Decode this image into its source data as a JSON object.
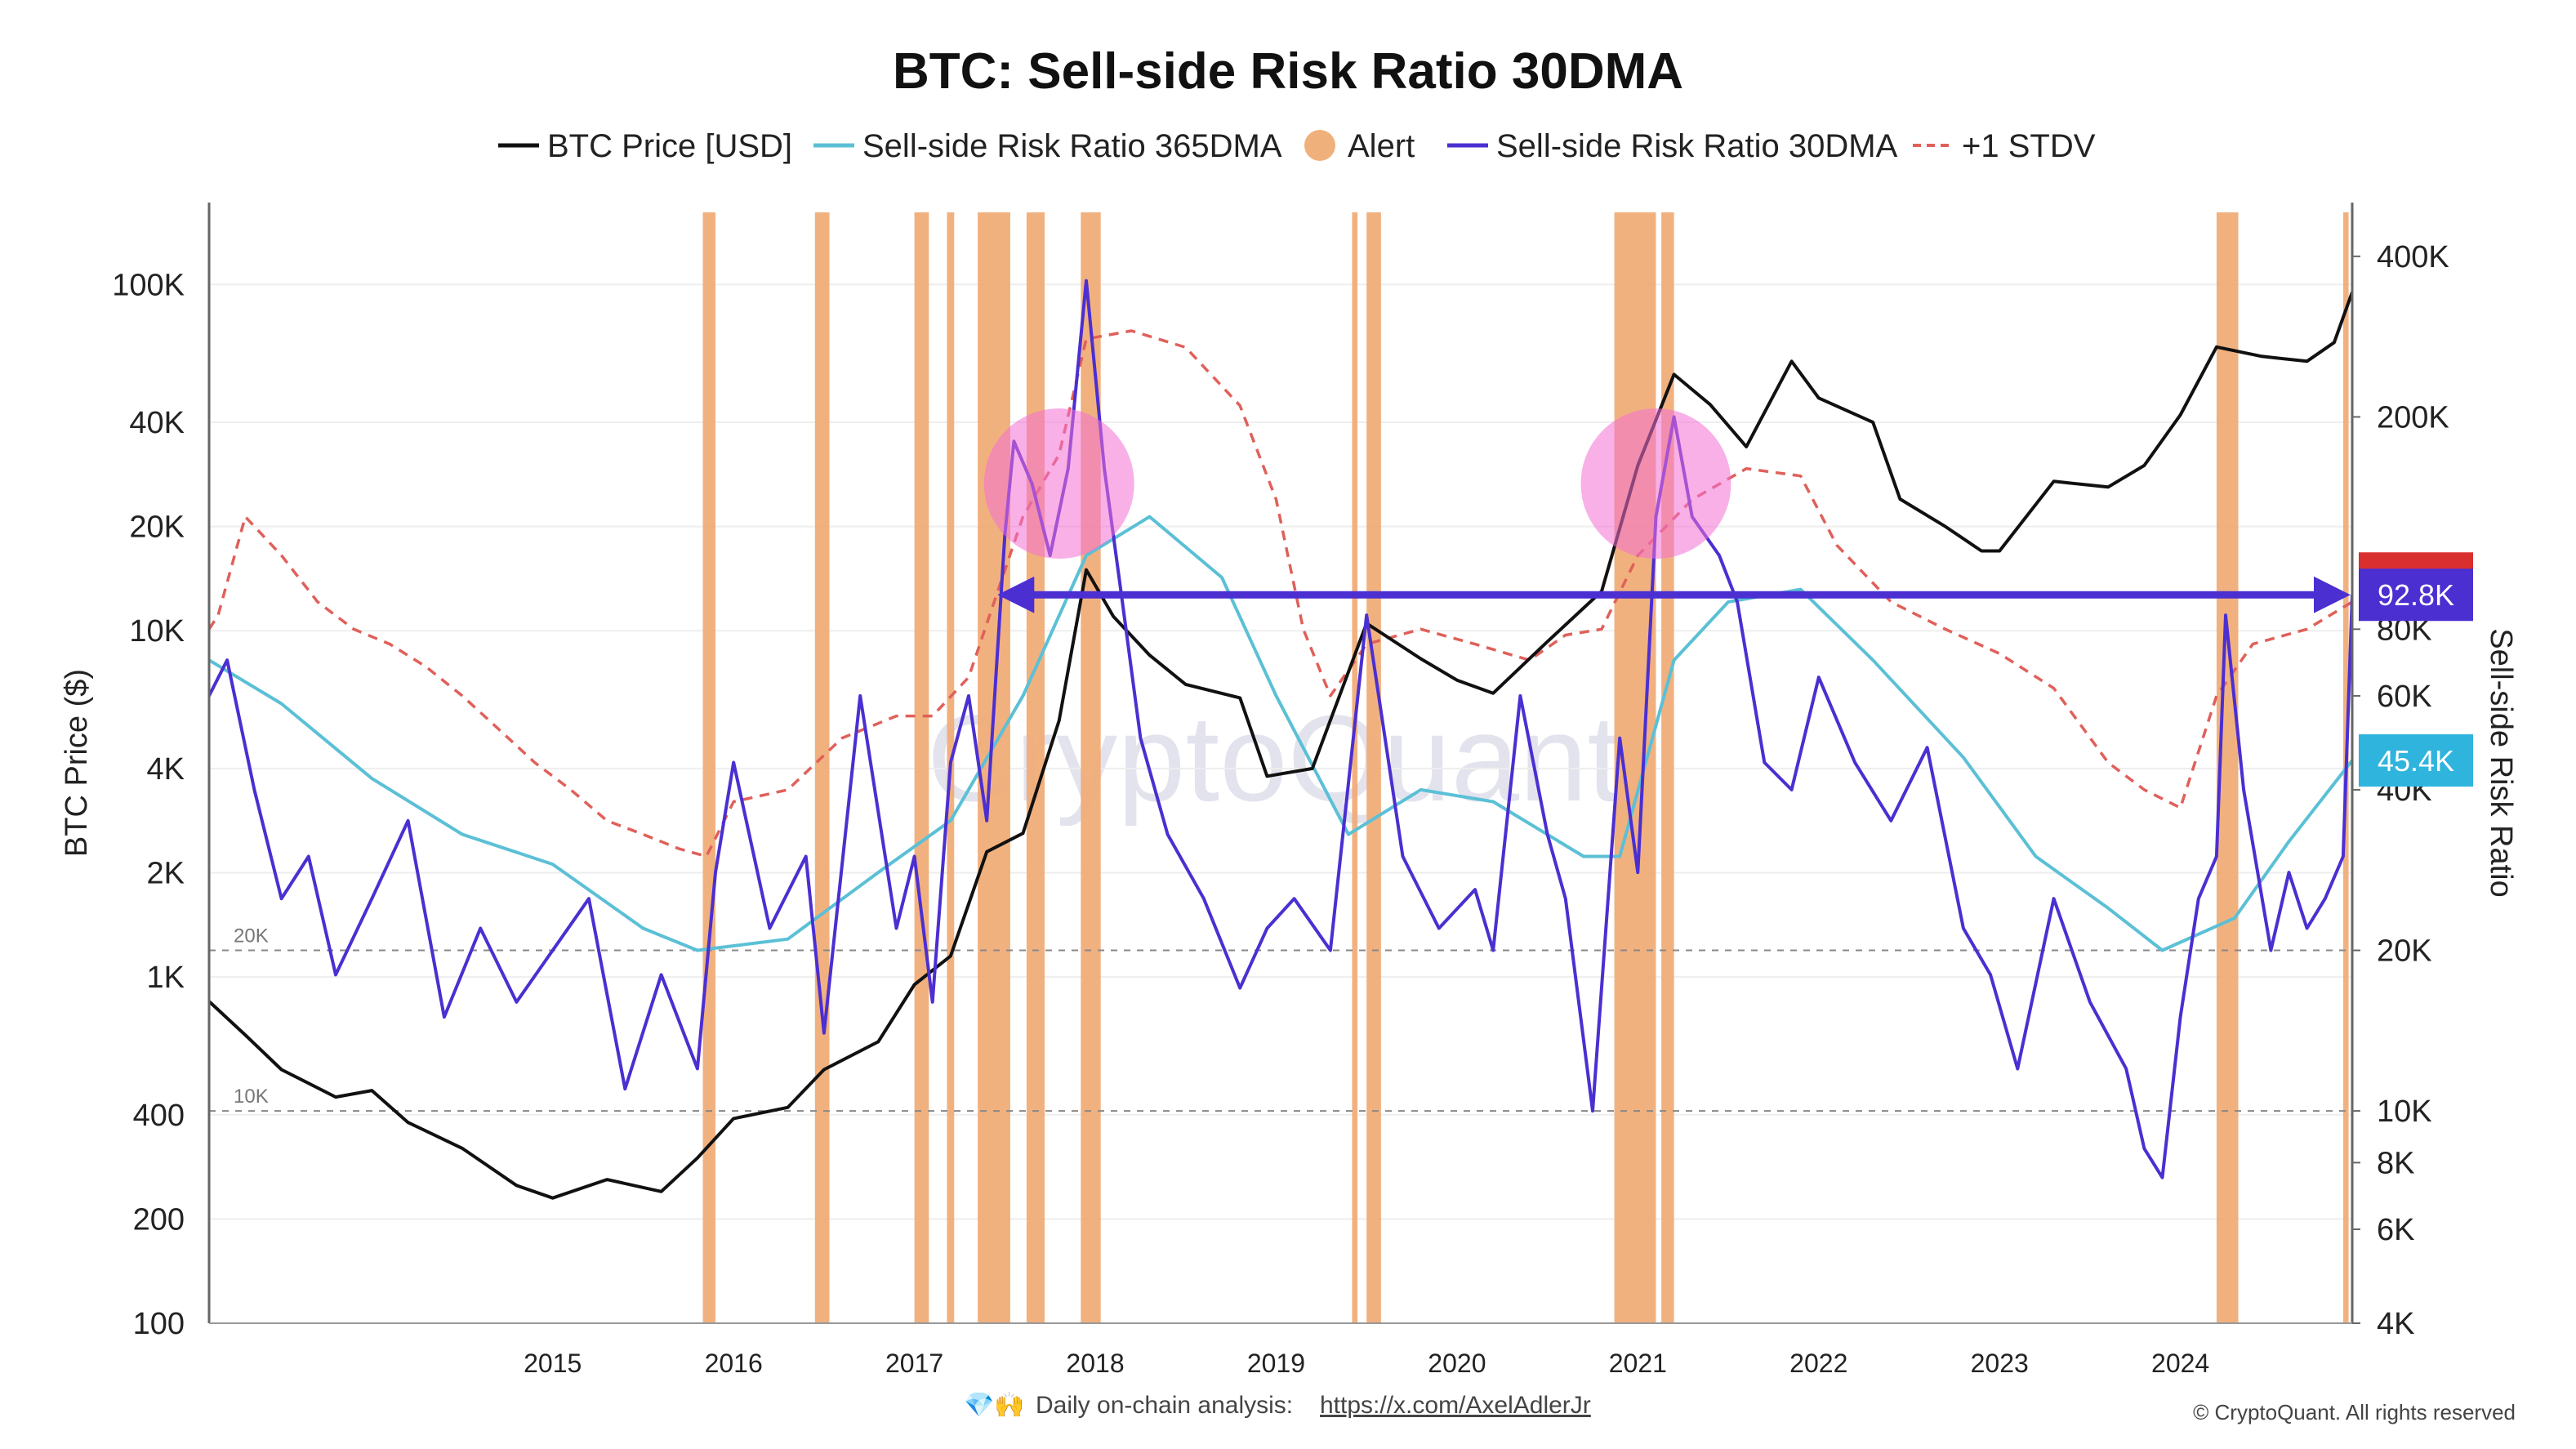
{
  "chart_data": {
    "type": "line",
    "title": "BTC: Sell-side Risk Ratio 30DMA",
    "ylabel": "BTC Price ($)",
    "y2label": "Sell-side Risk Ratio",
    "y_scale": "log",
    "ylim": [
      100,
      130000
    ],
    "y2lim": [
      4000,
      420000
    ],
    "x_range": [
      2013.1,
      2024.95
    ],
    "x_ticks": [
      "2015",
      "2016",
      "2017",
      "2018",
      "2019",
      "2020",
      "2021",
      "2022",
      "2023",
      "2024"
    ],
    "x_tick_values": [
      2015,
      2016,
      2017,
      2018,
      2019,
      2020,
      2021,
      2022,
      2023,
      2024
    ],
    "y_ticks": [
      "100",
      "200",
      "400",
      "1K",
      "2K",
      "4K",
      "10K",
      "20K",
      "40K",
      "100K"
    ],
    "y_tick_values": [
      100,
      200,
      400,
      1000,
      2000,
      4000,
      10000,
      20000,
      40000,
      100000
    ],
    "y2_ticks": [
      "4K",
      "6K",
      "8K",
      "10K",
      "20K",
      "40K",
      "60K",
      "80K",
      "200K",
      "400K"
    ],
    "y2_tick_values": [
      4000,
      6000,
      8000,
      10000,
      20000,
      40000,
      60000,
      80000,
      200000,
      400000
    ],
    "legend_placement": "top-center",
    "legend": [
      {
        "label": "BTC Price [USD]",
        "kind": "line",
        "color": "#111111"
      },
      {
        "label": "Sell-side Risk Ratio 365DMA",
        "kind": "line",
        "color": "#5bc0d6"
      },
      {
        "label": "Alert",
        "kind": "dot",
        "color": "#f0b07c"
      },
      {
        "label": "Sell-side Risk Ratio 30DMA",
        "kind": "line",
        "color": "#4b2fd1"
      },
      {
        "label": "+1 STDV",
        "kind": "dashed",
        "color": "#e0605a"
      }
    ],
    "reference_lines": [
      {
        "label": "20K",
        "value": 20000
      },
      {
        "label": "10K",
        "value": 10000
      }
    ],
    "badges": [
      {
        "label": "92.8K",
        "value": 92800,
        "color": "#4b2fd1"
      },
      {
        "label": "45.4K",
        "value": 45400,
        "color": "#2fb4de"
      }
    ],
    "series": [
      {
        "name": "BTC Price [USD]",
        "axis": "left",
        "color": "#111111",
        "x": [
          2013.1,
          2013.3,
          2013.5,
          2013.8,
          2014.0,
          2014.2,
          2014.5,
          2014.8,
          2015.0,
          2015.3,
          2015.6,
          2015.8,
          2016.0,
          2016.3,
          2016.5,
          2016.8,
          2017.0,
          2017.2,
          2017.4,
          2017.6,
          2017.8,
          2017.95,
          2018.1,
          2018.3,
          2018.5,
          2018.8,
          2018.95,
          2019.2,
          2019.5,
          2019.8,
          2020.0,
          2020.2,
          2020.5,
          2020.8,
          2021.0,
          2021.2,
          2021.4,
          2021.6,
          2021.85,
          2022.0,
          2022.3,
          2022.45,
          2022.7,
          2022.9,
          2023.0,
          2023.3,
          2023.6,
          2023.8,
          2024.0,
          2024.2,
          2024.45,
          2024.7,
          2024.85,
          2024.95
        ],
        "values": [
          850,
          680,
          540,
          450,
          470,
          380,
          320,
          250,
          230,
          260,
          240,
          300,
          390,
          420,
          540,
          650,
          950,
          1150,
          2300,
          2600,
          5500,
          15000,
          11000,
          8500,
          7000,
          6400,
          3800,
          4000,
          10500,
          8300,
          7200,
          6600,
          9300,
          13000,
          30000,
          55000,
          45000,
          34000,
          60000,
          47000,
          40000,
          24000,
          20000,
          17000,
          17000,
          27000,
          26000,
          30000,
          42000,
          66000,
          62000,
          60000,
          68000,
          95000
        ]
      },
      {
        "name": "Sell-side Risk Ratio 365DMA",
        "axis": "right",
        "color": "#5bc0d6",
        "x": [
          2013.1,
          2013.5,
          2014.0,
          2014.5,
          2015.0,
          2015.5,
          2015.8,
          2016.3,
          2016.8,
          2017.2,
          2017.6,
          2017.95,
          2018.3,
          2018.7,
          2019.0,
          2019.4,
          2019.8,
          2020.2,
          2020.7,
          2020.9,
          2021.2,
          2021.5,
          2021.9,
          2022.3,
          2022.8,
          2023.2,
          2023.6,
          2023.9,
          2024.3,
          2024.6,
          2024.95
        ],
        "values": [
          70000,
          58000,
          42000,
          33000,
          29000,
          22000,
          20000,
          21000,
          28000,
          35000,
          60000,
          110000,
          130000,
          100000,
          60000,
          33000,
          40000,
          38000,
          30000,
          30000,
          70000,
          90000,
          95000,
          70000,
          46000,
          30000,
          24000,
          20000,
          23000,
          32000,
          45400
        ]
      },
      {
        "name": "Sell-side Risk Ratio 30DMA",
        "axis": "right",
        "color": "#4b2fd1",
        "x": [
          2013.1,
          2013.2,
          2013.35,
          2013.5,
          2013.65,
          2013.8,
          2014.0,
          2014.2,
          2014.4,
          2014.6,
          2014.8,
          2015.0,
          2015.2,
          2015.4,
          2015.6,
          2015.8,
          2015.9,
          2016.0,
          2016.2,
          2016.4,
          2016.5,
          2016.7,
          2016.9,
          2017.0,
          2017.1,
          2017.2,
          2017.3,
          2017.4,
          2017.5,
          2017.55,
          2017.65,
          2017.75,
          2017.85,
          2017.95,
          2018.05,
          2018.15,
          2018.25,
          2018.4,
          2018.6,
          2018.8,
          2018.95,
          2019.1,
          2019.3,
          2019.5,
          2019.7,
          2019.9,
          2020.1,
          2020.2,
          2020.35,
          2020.5,
          2020.6,
          2020.75,
          2020.9,
          2021.0,
          2021.1,
          2021.2,
          2021.3,
          2021.45,
          2021.55,
          2021.7,
          2021.85,
          2022.0,
          2022.2,
          2022.4,
          2022.6,
          2022.8,
          2022.95,
          2023.1,
          2023.3,
          2023.5,
          2023.7,
          2023.8,
          2023.9,
          2024.0,
          2024.1,
          2024.2,
          2024.25,
          2024.35,
          2024.5,
          2024.6,
          2024.7,
          2024.8,
          2024.9,
          2024.95
        ],
        "values": [
          60000,
          70000,
          40000,
          25000,
          30000,
          18000,
          25000,
          35000,
          15000,
          22000,
          16000,
          20000,
          25000,
          11000,
          18000,
          12000,
          28000,
          45000,
          22000,
          30000,
          14000,
          60000,
          22000,
          30000,
          16000,
          45000,
          60000,
          35000,
          120000,
          180000,
          150000,
          110000,
          160000,
          360000,
          160000,
          90000,
          50000,
          33000,
          25000,
          17000,
          22000,
          25000,
          20000,
          85000,
          30000,
          22000,
          26000,
          20000,
          60000,
          33000,
          25000,
          10000,
          50000,
          28000,
          130000,
          200000,
          130000,
          110000,
          90000,
          45000,
          40000,
          65000,
          45000,
          35000,
          48000,
          22000,
          18000,
          12000,
          25000,
          16000,
          12000,
          8500,
          7500,
          15000,
          25000,
          30000,
          85000,
          40000,
          20000,
          28000,
          22000,
          25000,
          30000,
          92800
        ]
      },
      {
        "name": "+1 STDV",
        "axis": "right",
        "color": "#e0605a",
        "x": [
          2013.1,
          2013.15,
          2013.3,
          2013.5,
          2013.7,
          2013.9,
          2014.1,
          2014.3,
          2014.5,
          2014.7,
          2014.9,
          2015.1,
          2015.3,
          2015.5,
          2015.7,
          2015.85,
          2016.0,
          2016.3,
          2016.6,
          2016.9,
          2017.1,
          2017.3,
          2017.6,
          2017.8,
          2017.95,
          2018.2,
          2018.5,
          2018.8,
          2019.0,
          2019.15,
          2019.3,
          2019.5,
          2019.8,
          2020.1,
          2020.4,
          2020.6,
          2020.8,
          2021.0,
          2021.3,
          2021.6,
          2021.9,
          2022.1,
          2022.4,
          2022.7,
          2023.0,
          2023.3,
          2023.6,
          2023.8,
          2024.0,
          2024.2,
          2024.4,
          2024.7,
          2024.95
        ],
        "values": [
          80000,
          85000,
          130000,
          110000,
          90000,
          80000,
          75000,
          68000,
          60000,
          52000,
          45000,
          40000,
          35000,
          33000,
          31000,
          30000,
          38000,
          40000,
          50000,
          55000,
          55000,
          65000,
          130000,
          170000,
          280000,
          290000,
          270000,
          210000,
          140000,
          80000,
          60000,
          75000,
          80000,
          75000,
          70000,
          78000,
          80000,
          110000,
          140000,
          160000,
          155000,
          115000,
          90000,
          80000,
          72000,
          62000,
          45000,
          40000,
          37000,
          60000,
          75000,
          80000,
          90000
        ]
      }
    ],
    "alert_periods": [
      [
        2015.83,
        2015.9
      ],
      [
        2016.45,
        2016.53
      ],
      [
        2017.0,
        2017.08
      ],
      [
        2017.18,
        2017.22
      ],
      [
        2017.35,
        2017.53
      ],
      [
        2017.62,
        2017.72
      ],
      [
        2017.92,
        2018.03
      ],
      [
        2019.42,
        2019.45
      ],
      [
        2019.5,
        2019.58
      ],
      [
        2020.87,
        2021.1
      ],
      [
        2021.13,
        2021.2
      ],
      [
        2024.2,
        2024.32
      ],
      [
        2024.9,
        2024.93
      ]
    ],
    "annotations": [
      {
        "kind": "circle",
        "x": 2017.8,
        "y2": 150000
      },
      {
        "kind": "circle",
        "x": 2021.1,
        "y2": 150000
      },
      {
        "kind": "double-arrow",
        "x_from": 2017.5,
        "x_to": 2024.9,
        "y2": 92800
      }
    ]
  },
  "watermark": "CryptoQuant",
  "footer": {
    "emoji": "💎🙌",
    "prefix": "Daily on-chain analysis:",
    "link": "https://x.com/AxelAdlerJr",
    "copyright": "© CryptoQuant. All rights reserved"
  }
}
